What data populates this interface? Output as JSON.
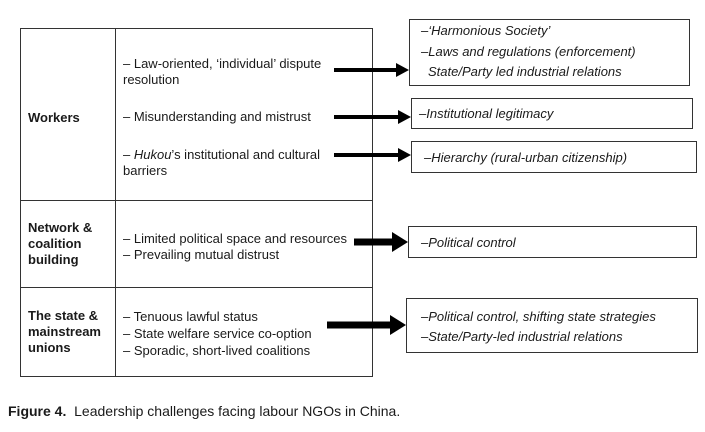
{
  "rows": [
    {
      "category": [
        "Workers"
      ],
      "items": [
        {
          "lines": [
            "– Law-oriented, ‘individual’ dispute",
            "resolution"
          ]
        },
        {
          "lines": [
            "– Misunderstanding and mistrust"
          ]
        },
        {
          "prefix": "– ",
          "italic": "Hukou",
          "rest": "’s institutional and cultural",
          "line2": "barriers"
        }
      ]
    },
    {
      "category": [
        "Network &",
        "coalition",
        "building"
      ],
      "items": [
        {
          "lines": [
            "– Limited political space and resources"
          ]
        },
        {
          "lines": [
            "– Prevailing mutual distrust"
          ]
        }
      ]
    },
    {
      "category": [
        "The state &",
        "mainstream",
        "unions"
      ],
      "items": [
        {
          "lines": [
            "– Tenuous lawful status"
          ]
        },
        {
          "lines": [
            "– State welfare service co-option"
          ]
        },
        {
          "lines": [
            "– Sporadic, short-lived coalitions"
          ]
        }
      ]
    }
  ],
  "outcomes": [
    [
      "–‘Harmonious Society’",
      "–Laws and regulations (enforcement)",
      "State/Party led industrial relations"
    ],
    [
      "–Institutional legitimacy"
    ],
    [
      "–Hierarchy (rural-urban citizenship)"
    ],
    [
      "–Political control"
    ],
    [
      "–Political control, shifting state strategies",
      "–State/Party-led industrial relations"
    ]
  ],
  "caption": {
    "label": "Figure 4.",
    "text": "Leadership challenges facing labour NGOs in China."
  }
}
